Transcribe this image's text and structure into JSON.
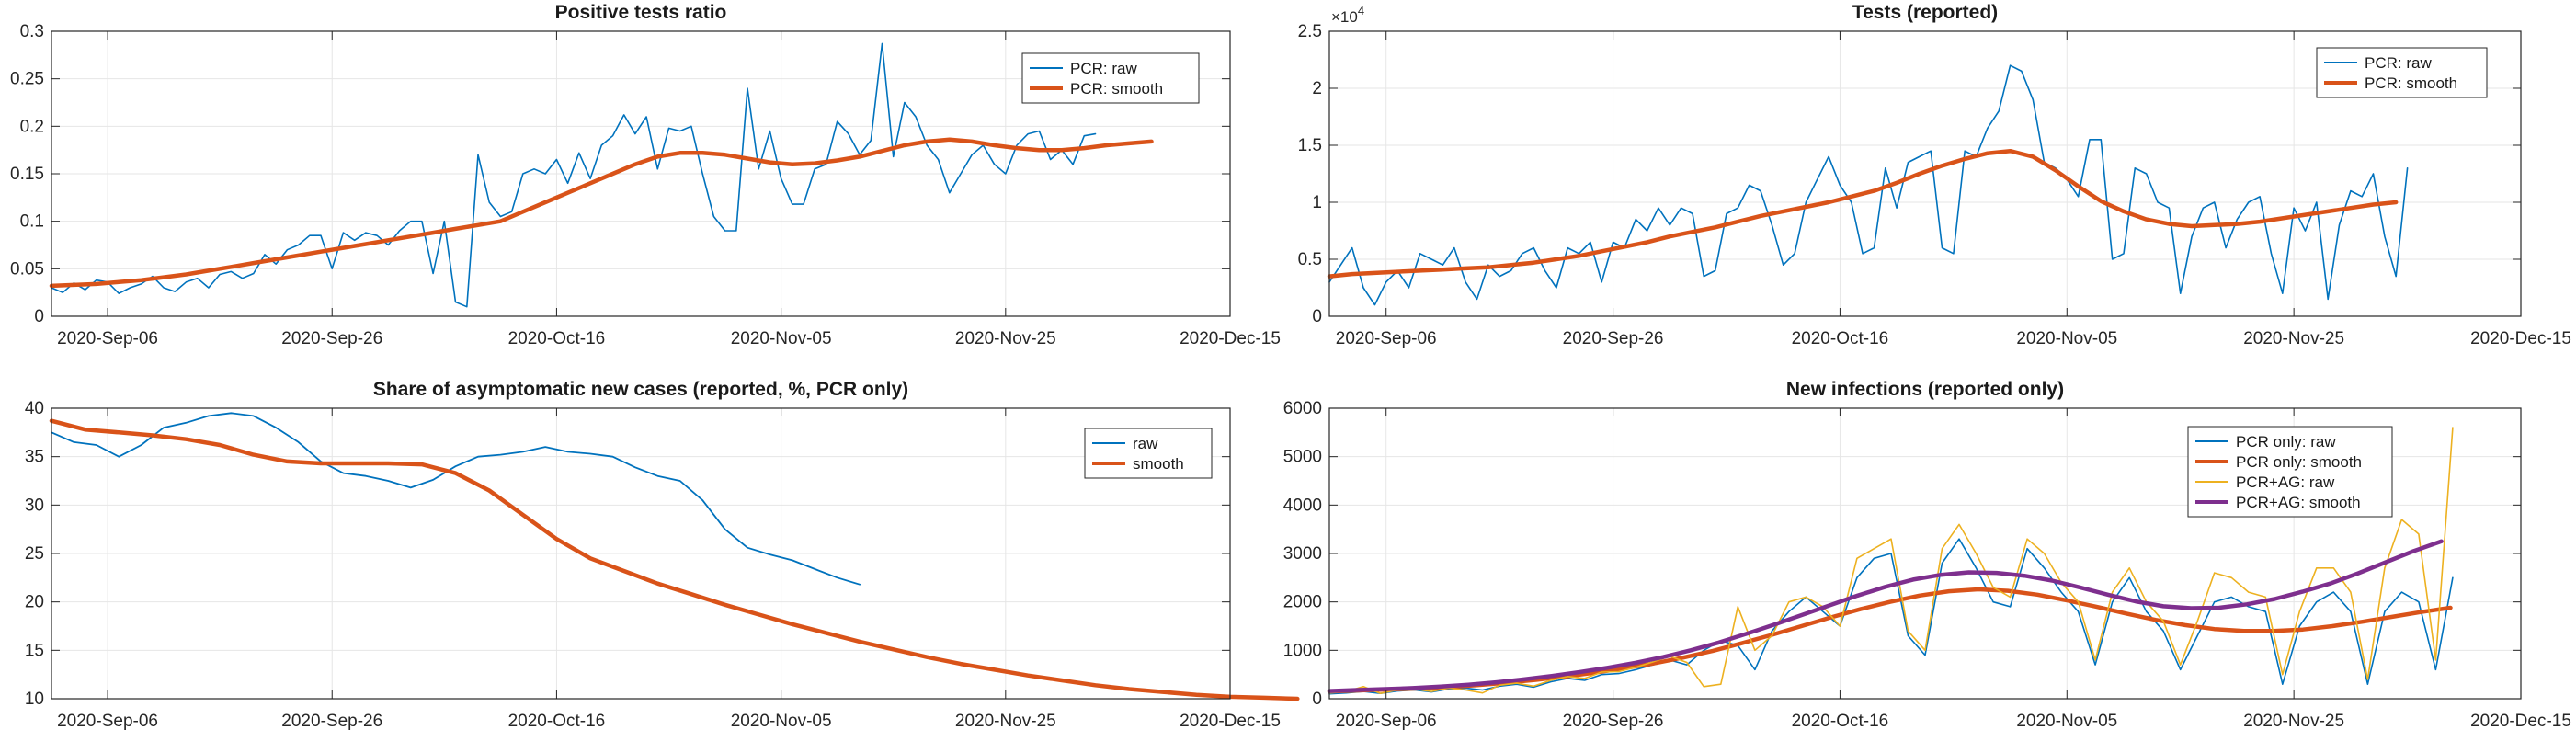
{
  "figure": {
    "colors": {
      "blue": "#0072BD",
      "orange": "#D95319",
      "yellow": "#EDB120",
      "purple": "#7E2F8E",
      "grid": "#e6e6e6",
      "axis": "#262626"
    }
  },
  "chart_data": [
    {
      "type": "line",
      "title": "Positive tests ratio",
      "xlabel": "",
      "ylabel": "",
      "x_ticks": [
        "2020-Sep-06",
        "2020-Sep-26",
        "2020-Oct-16",
        "2020-Nov-05",
        "2020-Nov-25",
        "2020-Dec-15"
      ],
      "x_start": "2020-Sep-01",
      "xlim_days": [
        0,
        105
      ],
      "ylim": [
        0,
        0.3
      ],
      "y_ticks": [
        "0",
        "0.05",
        "0.1",
        "0.15",
        "0.2",
        "0.25",
        "0.3"
      ],
      "y_tick_values": [
        0,
        0.05,
        0.1,
        0.15,
        0.2,
        0.25,
        0.3
      ],
      "y_exponent": "",
      "grid": true,
      "legend_position": "top-right",
      "series": [
        {
          "name": "PCR: raw",
          "color": "blue",
          "width": 1.6,
          "start_day": 0,
          "values": [
            0.03,
            0.025,
            0.035,
            0.028,
            0.038,
            0.036,
            0.024,
            0.03,
            0.034,
            0.042,
            0.03,
            0.026,
            0.036,
            0.04,
            0.03,
            0.044,
            0.047,
            0.04,
            0.045,
            0.065,
            0.055,
            0.07,
            0.075,
            0.085,
            0.085,
            0.05,
            0.088,
            0.08,
            0.088,
            0.085,
            0.075,
            0.09,
            0.1,
            0.1,
            0.045,
            0.1,
            0.015,
            0.01,
            0.17,
            0.12,
            0.105,
            0.11,
            0.15,
            0.155,
            0.15,
            0.165,
            0.14,
            0.172,
            0.145,
            0.18,
            0.19,
            0.212,
            0.192,
            0.21,
            0.155,
            0.198,
            0.195,
            0.2,
            0.15,
            0.105,
            0.09,
            0.09,
            0.24,
            0.155,
            0.195,
            0.145,
            0.118,
            0.118,
            0.155,
            0.16,
            0.205,
            0.192,
            0.17,
            0.185,
            0.287,
            0.168,
            0.225,
            0.21,
            0.18,
            0.165,
            0.13,
            0.15,
            0.17,
            0.18,
            0.16,
            0.15,
            0.18,
            0.192,
            0.195,
            0.165,
            0.175,
            0.16,
            0.19,
            0.192
          ]
        },
        {
          "name": "PCR: smooth",
          "color": "orange",
          "width": 4.5,
          "start_day": 0,
          "values": [
            0.032,
            0.033,
            0.034,
            0.036,
            0.038,
            0.041,
            0.044,
            0.048,
            0.052,
            0.056,
            0.06,
            0.064,
            0.068,
            0.072,
            0.076,
            0.08,
            0.084,
            0.088,
            0.092,
            0.096,
            0.1,
            0.11,
            0.12,
            0.13,
            0.14,
            0.15,
            0.16,
            0.168,
            0.172,
            0.172,
            0.17,
            0.166,
            0.162,
            0.16,
            0.161,
            0.164,
            0.168,
            0.174,
            0.18,
            0.184,
            0.186,
            0.184,
            0.18,
            0.177,
            0.175,
            0.175,
            0.177,
            0.18,
            0.182,
            0.184
          ],
          "x_step": 2
        }
      ]
    },
    {
      "type": "line",
      "title": "Tests (reported)",
      "xlabel": "",
      "ylabel": "",
      "x_ticks": [
        "2020-Sep-06",
        "2020-Sep-26",
        "2020-Oct-16",
        "2020-Nov-05",
        "2020-Nov-25",
        "2020-Dec-15"
      ],
      "x_start": "2020-Sep-01",
      "xlim_days": [
        0,
        105
      ],
      "ylim": [
        0,
        2.5
      ],
      "y_ticks": [
        "0",
        "0.5",
        "1",
        "1.5",
        "2",
        "2.5"
      ],
      "y_tick_values": [
        0,
        0.5,
        1,
        1.5,
        2,
        2.5
      ],
      "y_exponent": "×10",
      "y_exponent_power": "4",
      "grid": true,
      "legend_position": "top-right",
      "series": [
        {
          "name": "PCR: raw",
          "color": "blue",
          "width": 1.6,
          "start_day": 0,
          "values": [
            0.3,
            0.45,
            0.6,
            0.25,
            0.1,
            0.3,
            0.4,
            0.25,
            0.55,
            0.5,
            0.45,
            0.6,
            0.3,
            0.15,
            0.45,
            0.35,
            0.4,
            0.55,
            0.6,
            0.4,
            0.25,
            0.6,
            0.55,
            0.65,
            0.3,
            0.65,
            0.6,
            0.85,
            0.75,
            0.95,
            0.8,
            0.95,
            0.9,
            0.35,
            0.4,
            0.9,
            0.95,
            1.15,
            1.1,
            0.8,
            0.45,
            0.55,
            1.0,
            1.2,
            1.4,
            1.15,
            1.0,
            0.55,
            0.6,
            1.3,
            0.95,
            1.35,
            1.4,
            1.45,
            0.6,
            0.55,
            1.45,
            1.4,
            1.65,
            1.8,
            2.2,
            2.15,
            1.9,
            1.35,
            1.3,
            1.2,
            1.05,
            1.55,
            1.55,
            0.5,
            0.55,
            1.3,
            1.25,
            1.0,
            0.95,
            0.2,
            0.7,
            0.95,
            1.0,
            0.6,
            0.85,
            1.0,
            1.05,
            0.55,
            0.2,
            0.95,
            0.75,
            1.0,
            0.15,
            0.8,
            1.1,
            1.05,
            1.25,
            0.7,
            0.35,
            1.3
          ]
        },
        {
          "name": "PCR: smooth",
          "color": "orange",
          "width": 4.5,
          "start_day": 0,
          "values": [
            0.35,
            0.37,
            0.38,
            0.39,
            0.4,
            0.41,
            0.42,
            0.43,
            0.45,
            0.47,
            0.5,
            0.53,
            0.57,
            0.61,
            0.65,
            0.7,
            0.74,
            0.78,
            0.83,
            0.88,
            0.92,
            0.96,
            1.0,
            1.05,
            1.1,
            1.17,
            1.25,
            1.32,
            1.38,
            1.43,
            1.45,
            1.4,
            1.28,
            1.14,
            1.01,
            0.92,
            0.85,
            0.81,
            0.79,
            0.8,
            0.81,
            0.83,
            0.86,
            0.89,
            0.92,
            0.95,
            0.98,
            1.0
          ],
          "x_step": 2
        }
      ]
    },
    {
      "type": "line",
      "title": "Share of asymptomatic new cases (reported,  %, PCR only)",
      "xlabel": "",
      "ylabel": "",
      "x_ticks": [
        "2020-Sep-06",
        "2020-Sep-26",
        "2020-Oct-16",
        "2020-Nov-05",
        "2020-Nov-25",
        "2020-Dec-15"
      ],
      "x_start": "2020-Sep-01",
      "xlim_days": [
        0,
        105
      ],
      "ylim": [
        10,
        40
      ],
      "y_ticks": [
        "10",
        "15",
        "20",
        "25",
        "30",
        "35",
        "40"
      ],
      "y_tick_values": [
        10,
        15,
        20,
        25,
        30,
        35,
        40
      ],
      "y_exponent": "",
      "grid": true,
      "legend_position": "top-right",
      "series": [
        {
          "name": "raw",
          "color": "blue",
          "width": 1.8,
          "start_day": 0,
          "values": [
            37.5,
            36.5,
            36.2,
            35.0,
            36.2,
            38.0,
            38.5,
            39.2,
            39.5,
            39.2,
            38.0,
            36.5,
            34.5,
            33.3,
            33.0,
            32.5,
            31.8,
            32.6,
            34.0,
            35.0,
            35.2,
            35.5,
            36.0,
            35.5,
            35.3,
            35.0,
            33.9,
            33.0,
            32.5,
            30.5,
            27.5,
            25.6,
            24.9,
            24.3,
            23.4,
            22.5,
            21.8
          ],
          "x_step": 2
        },
        {
          "name": "smooth",
          "color": "orange",
          "width": 4.5,
          "start_day": 0,
          "values": [
            38.7,
            37.8,
            37.5,
            37.2,
            36.8,
            36.2,
            35.2,
            34.5,
            34.3,
            34.3,
            34.3,
            34.2,
            33.3,
            31.5,
            29.0,
            26.5,
            24.5,
            23.2,
            21.9,
            20.8,
            19.7,
            18.7,
            17.7,
            16.8,
            15.9,
            15.1,
            14.3,
            13.6,
            13.0,
            12.4,
            11.9,
            11.4,
            11.0,
            10.7,
            10.4,
            10.2,
            10.1,
            10.0
          ],
          "x_step": 3
        }
      ]
    },
    {
      "type": "line",
      "title": "New infections (reported only)",
      "xlabel": "",
      "ylabel": "",
      "x_ticks": [
        "2020-Sep-06",
        "2020-Sep-26",
        "2020-Oct-16",
        "2020-Nov-05",
        "2020-Nov-25",
        "2020-Dec-15"
      ],
      "x_start": "2020-Sep-01",
      "xlim_days": [
        0,
        105
      ],
      "ylim": [
        0,
        6000
      ],
      "y_ticks": [
        "0",
        "1000",
        "2000",
        "3000",
        "4000",
        "5000",
        "6000"
      ],
      "y_tick_values": [
        0,
        1000,
        2000,
        3000,
        4000,
        5000,
        6000
      ],
      "y_exponent": "",
      "grid": true,
      "legend_position": "top-right",
      "series": [
        {
          "name": "PCR only: raw",
          "color": "blue",
          "width": 1.6,
          "start_day": 0,
          "values": [
            100,
            120,
            150,
            110,
            160,
            180,
            140,
            200,
            220,
            180,
            260,
            300,
            240,
            350,
            420,
            380,
            500,
            520,
            600,
            700,
            800,
            700,
            1000,
            1200,
            1100,
            600,
            1400,
            1800,
            2100,
            1800,
            1500,
            2500,
            2900,
            3000,
            1300,
            900,
            2800,
            3300,
            2700,
            2000,
            1900,
            3100,
            2700,
            2200,
            1800,
            700,
            2000,
            2500,
            1800,
            1400,
            600,
            1300,
            2000,
            2100,
            1900,
            1800,
            300,
            1500,
            2000,
            2200,
            1800,
            300,
            1800,
            2200,
            2000,
            600,
            2500
          ],
          "x_step": 1.5
        },
        {
          "name": "PCR only: smooth",
          "color": "orange",
          "width": 4.5,
          "start_day": 0,
          "values": [
            150,
            170,
            190,
            210,
            240,
            280,
            330,
            390,
            460,
            540,
            630,
            730,
            850,
            990,
            1150,
            1320,
            1500,
            1680,
            1850,
            2000,
            2130,
            2220,
            2260,
            2230,
            2150,
            2030,
            1900,
            1760,
            1630,
            1520,
            1440,
            1400,
            1400,
            1430,
            1500,
            1590,
            1690,
            1790,
            1880
          ],
          "x_step": 2.6
        },
        {
          "name": "PCR+AG: raw",
          "color": "yellow",
          "width": 1.6,
          "start_day": 0,
          "values": [
            120,
            150,
            250,
            110,
            180,
            200,
            150,
            220,
            180,
            120,
            280,
            320,
            260,
            380,
            460,
            420,
            550,
            560,
            650,
            760,
            880,
            750,
            250,
            300,
            1900,
            1000,
            1300,
            2000,
            2100,
            1900,
            1500,
            2900,
            3100,
            3300,
            1400,
            1000,
            3100,
            3600,
            3000,
            2300,
            2100,
            3300,
            3000,
            2400,
            2000,
            800,
            2200,
            2700,
            2000,
            1600,
            700,
            1600,
            2600,
            2500,
            2200,
            2100,
            500,
            1800,
            2700,
            2700,
            2200,
            400,
            2700,
            3700,
            3400,
            800,
            5600
          ],
          "x_step": 1.5
        },
        {
          "name": "PCR+AG: smooth",
          "color": "purple",
          "width": 4.5,
          "start_day": 0,
          "values": [
            160,
            180,
            200,
            220,
            250,
            290,
            340,
            400,
            470,
            550,
            640,
            740,
            860,
            1000,
            1160,
            1340,
            1530,
            1730,
            1930,
            2130,
            2310,
            2460,
            2560,
            2610,
            2600,
            2540,
            2440,
            2300,
            2150,
            2010,
            1910,
            1870,
            1880,
            1950,
            2060,
            2210,
            2380,
            2590,
            2820,
            3050,
            3250
          ],
          "x_step": 2.45
        }
      ]
    }
  ]
}
